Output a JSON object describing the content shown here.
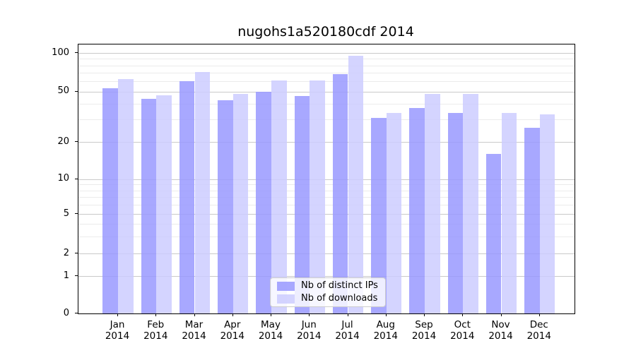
{
  "chart_data": {
    "type": "bar",
    "title": "nugohs1a520180cdf 2014",
    "categories": [
      "Jan",
      "Feb",
      "Mar",
      "Apr",
      "May",
      "Jun",
      "Jul",
      "Aug",
      "Sep",
      "Oct",
      "Nov",
      "Dec"
    ],
    "category_year": "2014",
    "series": [
      {
        "name": "Nb of distinct IPs",
        "color": "rgba(153,153,255,0.85)",
        "values": [
          53,
          44,
          60,
          43,
          50,
          46,
          68,
          31,
          37,
          34,
          16,
          26
        ]
      },
      {
        "name": "Nb of downloads",
        "color": "rgba(204,204,255,0.85)",
        "values": [
          63,
          47,
          71,
          48,
          61,
          61,
          95,
          34,
          48,
          48,
          34,
          33
        ]
      }
    ],
    "y_axis": {
      "scale": "log-like",
      "major_ticks": [
        0,
        1,
        2,
        5,
        10,
        20,
        50,
        100
      ],
      "minor_gridlines": [
        3,
        4,
        6,
        7,
        8,
        9,
        30,
        40,
        60,
        70,
        80,
        90
      ]
    },
    "legend": {
      "position": "lower center"
    },
    "grid": true,
    "colors": {
      "major_grid": "#c9c9c9",
      "minor_grid": "#ebebeb",
      "axis": "#000000",
      "bar_distinct_ips": "rgba(153,153,255,0.85)",
      "bar_downloads": "rgba(204,204,255,0.85)"
    }
  }
}
